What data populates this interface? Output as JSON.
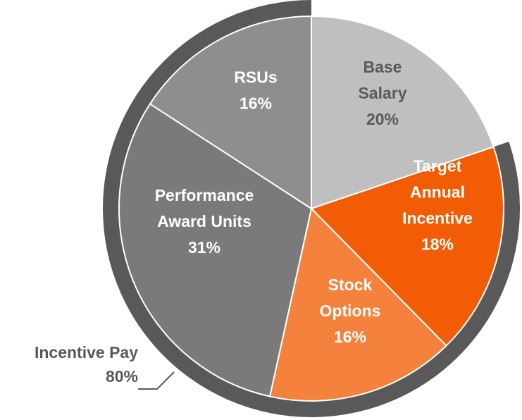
{
  "chart_data": {
    "type": "pie",
    "slices": [
      {
        "lines": [
          "Base",
          "Salary"
        ],
        "value_label": "20%",
        "value": 20,
        "color": "#bfbfbf",
        "text_color": "#5a5a5a"
      },
      {
        "lines": [
          "Target",
          "Annual",
          "Incentive"
        ],
        "value_label": "18%",
        "value": 18,
        "color": "#f25c05",
        "text_color": "#ffffff"
      },
      {
        "lines": [
          "Stock",
          "Options"
        ],
        "value_label": "16%",
        "value": 16,
        "color": "#f5823c",
        "text_color": "#ffffff"
      },
      {
        "lines": [
          "Performance",
          "Award Units"
        ],
        "value_label": "31%",
        "value": 31,
        "color": "#7a7a7a",
        "text_color": "#ffffff"
      },
      {
        "lines": [
          "RSUs"
        ],
        "value_label": "16%",
        "value": 16,
        "color": "#8e8e8e",
        "text_color": "#ffffff"
      }
    ],
    "group_ring": {
      "label": "Incentive Pay",
      "value_label": "80%",
      "value": 80,
      "color": "#595959"
    }
  }
}
